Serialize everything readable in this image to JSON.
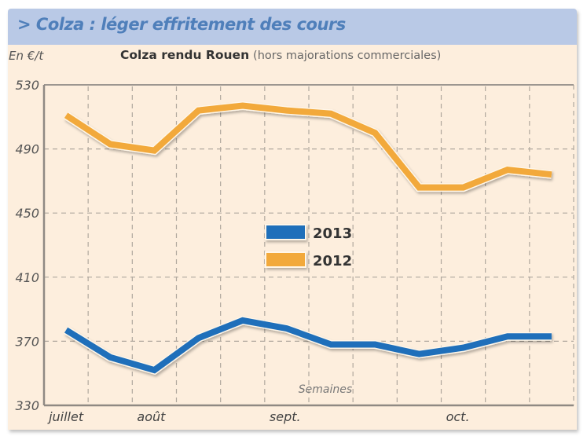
{
  "header": {
    "title": "> Colza : léger effritement des cours"
  },
  "chart_data": {
    "type": "line",
    "title": "Colza rendu Rouen",
    "subtitle": "(hors majorations commerciales)",
    "ylabel": "En €/t",
    "xlabel": "Semaines",
    "ylim": [
      330,
      530
    ],
    "yticks": [
      530,
      490,
      450,
      410,
      370,
      330
    ],
    "grid": true,
    "x_tick_labels": [
      {
        "label": "juillet",
        "week": 0
      },
      {
        "label": "août",
        "week": 2
      },
      {
        "label": "sept.",
        "week": 5
      },
      {
        "label": "oct.",
        "week": 9
      }
    ],
    "weeks": 12,
    "legend_position": "center",
    "series": [
      {
        "name": "2013",
        "color": "#1f6fba",
        "values": [
          377,
          360,
          352,
          372,
          383,
          378,
          368,
          368,
          362,
          366,
          373,
          373
        ]
      },
      {
        "name": "2012",
        "color": "#f2a93b",
        "values": [
          511,
          493,
          489,
          514,
          517,
          514,
          512,
          500,
          466,
          466,
          477,
          474
        ]
      }
    ]
  }
}
